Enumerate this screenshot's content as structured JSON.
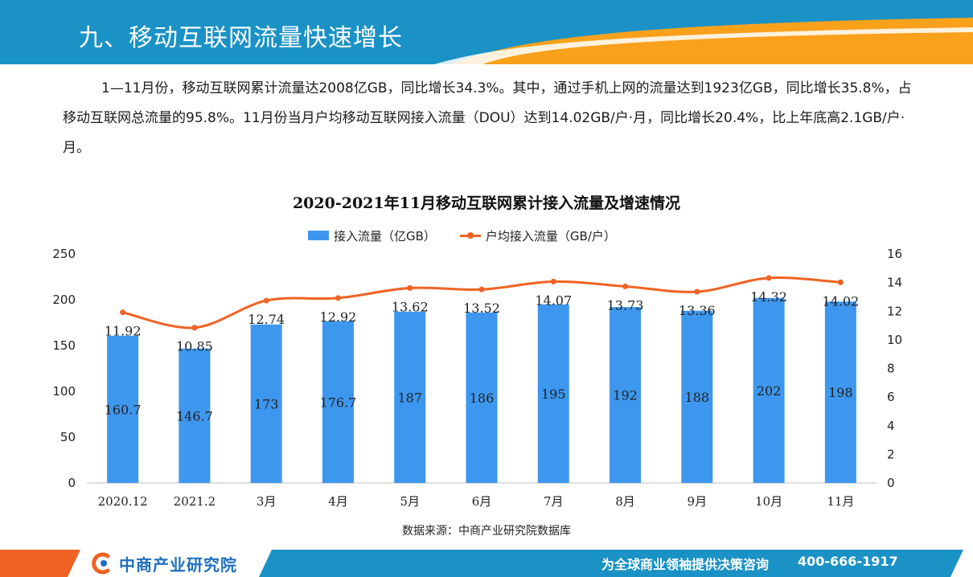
{
  "header": {
    "title": "九、移动互联网流量快速增长",
    "primary_color": "#1a92c6",
    "accent_color": "#f9a11b"
  },
  "summary": {
    "text": "1—11月份，移动互联网累计流量达2008亿GB，同比增长34.3%。其中，通过手机上网的流量达到1923亿GB，同比增长35.8%，占移动互联网总流量的95.8%。11月份当月户均移动互联网接入流量（DOU）达到14.02GB/户·月，同比增长20.4%，比上年底高2.1GB/户·月。"
  },
  "chart_data": {
    "type": "bar",
    "title": "2020-2021年11月移动互联网累计接入流量及增速情况",
    "categories": [
      "2020.12",
      "2021.2",
      "3月",
      "4月",
      "5月",
      "6月",
      "7月",
      "8月",
      "9月",
      "10月",
      "11月"
    ],
    "series": [
      {
        "name": "接入流量（亿GB）",
        "type": "bar",
        "axis": "left",
        "color": "#3d97ee",
        "values": [
          160.7,
          146.7,
          173,
          176.7,
          187,
          186,
          195,
          192,
          188,
          202,
          198
        ],
        "labels": [
          "160.7",
          "146.7",
          "173",
          "176.7",
          "187",
          "186",
          "195",
          "192",
          "188",
          "202",
          "198"
        ]
      },
      {
        "name": "户均接入流量（GB/户）",
        "type": "line",
        "axis": "right",
        "color": "#f06223",
        "values": [
          11.92,
          10.85,
          12.74,
          12.92,
          13.62,
          13.52,
          14.07,
          13.73,
          13.36,
          14.32,
          14.02
        ],
        "labels": [
          "11.92",
          "10.85",
          "12.74",
          "12.92",
          "13.62",
          "13.52",
          "14.07",
          "13.73",
          "13.36",
          "14.32",
          "14.02"
        ]
      }
    ],
    "y_left": {
      "min": 0,
      "max": 250,
      "step": 50,
      "ticks": [
        "0",
        "50",
        "100",
        "150",
        "200",
        "250"
      ]
    },
    "y_right": {
      "min": 0,
      "max": 16,
      "step": 2,
      "ticks": [
        "0",
        "2",
        "4",
        "6",
        "8",
        "10",
        "12",
        "14",
        "16"
      ]
    },
    "grid": false,
    "legend_position": "top"
  },
  "source": {
    "text": "数据来源：中商产业研究院数据库"
  },
  "footer": {
    "logo_text": "中商产业研究院",
    "slogan": "为全球商业领袖提供决策咨询",
    "hotline": "400-666-1917",
    "logo_icon": "company-logo-icon"
  }
}
